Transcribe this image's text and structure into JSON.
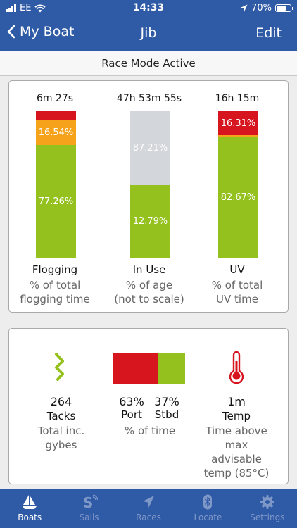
{
  "status_bar": {
    "carrier": "EE",
    "time": "14:33",
    "battery": "70%",
    "battery_level": 0.7,
    "icons": [
      "signal-icon",
      "wifi-icon",
      "location-arrow-icon",
      "battery-icon"
    ]
  },
  "nav": {
    "back_label": "My Boat",
    "title": "Jib",
    "edit_label": "Edit"
  },
  "mode_banner": "Race Mode Active",
  "colors": {
    "brand": "#2f5aa6",
    "red": "#d7151f",
    "orange": "#f7a21b",
    "green": "#95c11f",
    "grey": "#d3d6da",
    "tab_inactive": "#7f98c8"
  },
  "usage": {
    "flogging": {
      "duration": "6m 27s",
      "title": "Flogging",
      "subtitle_line1": "% of total",
      "subtitle_line2": "flogging time",
      "segments": [
        {
          "label": "",
          "value": 6.2,
          "color": "#d7151f"
        },
        {
          "label": "16.54%",
          "value": 16.54,
          "color": "#f7a21b"
        },
        {
          "label": "77.26%",
          "value": 77.26,
          "color": "#95c11f"
        }
      ]
    },
    "in_use": {
      "duration": "47h 53m 55s",
      "title": "In Use",
      "subtitle_line1": "% of age",
      "subtitle_line2": "(not to scale)",
      "segments": [
        {
          "label": "87.21%",
          "value": 50,
          "color": "#d3d6da"
        },
        {
          "label": "12.79%",
          "value": 50,
          "color": "#95c11f"
        }
      ]
    },
    "uv": {
      "duration": "16h 15m",
      "title": "UV",
      "subtitle_line1": "% of total",
      "subtitle_line2": "UV time",
      "segments": [
        {
          "label": "16.31%",
          "value": 16.31,
          "color": "#d7151f"
        },
        {
          "label": "",
          "value": 1.02,
          "color": "#f7a21b"
        },
        {
          "label": "82.67%",
          "value": 82.67,
          "color": "#95c11f"
        }
      ]
    }
  },
  "stats": {
    "tacks": {
      "value": "264",
      "label": "Tacks",
      "desc_line1": "Total inc.",
      "desc_line2": "gybes",
      "icon": "zigzag-icon"
    },
    "port_stbd": {
      "port_value": "63%",
      "port_label": "Port",
      "stbd_value": "37%",
      "stbd_label": "Stbd",
      "desc": "% of time",
      "port_fraction": 0.63
    },
    "temp": {
      "value": "1m",
      "label": "Temp",
      "desc_line1": "Time above",
      "desc_line2": "max",
      "desc_line3": "advisable",
      "desc_line4": "temp (85°C)",
      "icon": "thermometer-icon"
    }
  },
  "tabs": [
    {
      "label": "Boats",
      "icon": "sailboat-icon",
      "active": true
    },
    {
      "label": "Sails",
      "icon": "sails-logo-icon",
      "active": false
    },
    {
      "label": "Races",
      "icon": "navigation-arrow-icon",
      "active": false
    },
    {
      "label": "Locate",
      "icon": "bluetooth-icon",
      "active": false
    },
    {
      "label": "Settings",
      "icon": "gear-icon",
      "active": false
    }
  ]
}
